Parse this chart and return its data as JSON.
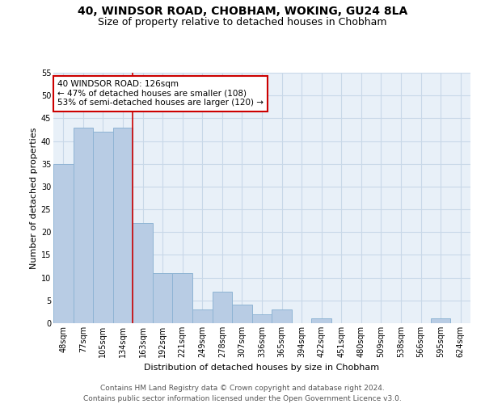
{
  "title1": "40, WINDSOR ROAD, CHOBHAM, WOKING, GU24 8LA",
  "title2": "Size of property relative to detached houses in Chobham",
  "xlabel": "Distribution of detached houses by size in Chobham",
  "ylabel": "Number of detached properties",
  "categories": [
    "48sqm",
    "77sqm",
    "105sqm",
    "134sqm",
    "163sqm",
    "192sqm",
    "221sqm",
    "249sqm",
    "278sqm",
    "307sqm",
    "336sqm",
    "365sqm",
    "394sqm",
    "422sqm",
    "451sqm",
    "480sqm",
    "509sqm",
    "538sqm",
    "566sqm",
    "595sqm",
    "624sqm"
  ],
  "values": [
    35,
    43,
    42,
    43,
    22,
    11,
    11,
    3,
    7,
    4,
    2,
    3,
    0,
    1,
    0,
    0,
    0,
    0,
    0,
    1,
    0
  ],
  "bar_color": "#b8cce4",
  "bar_edge_color": "#8fb4d4",
  "vline_x": 3.5,
  "vline_color": "#cc0000",
  "annotation_text": "40 WINDSOR ROAD: 126sqm\n← 47% of detached houses are smaller (108)\n53% of semi-detached houses are larger (120) →",
  "annotation_box_color": "#ffffff",
  "annotation_box_edge": "#cc0000",
  "ylim": [
    0,
    55
  ],
  "yticks": [
    0,
    5,
    10,
    15,
    20,
    25,
    30,
    35,
    40,
    45,
    50,
    55
  ],
  "grid_color": "#c8d8e8",
  "bg_color": "#e8f0f8",
  "footer": "Contains HM Land Registry data © Crown copyright and database right 2024.\nContains public sector information licensed under the Open Government Licence v3.0.",
  "title1_fontsize": 10,
  "title2_fontsize": 9,
  "axis_label_fontsize": 8,
  "tick_fontsize": 7,
  "annotation_fontsize": 7.5,
  "footer_fontsize": 6.5
}
